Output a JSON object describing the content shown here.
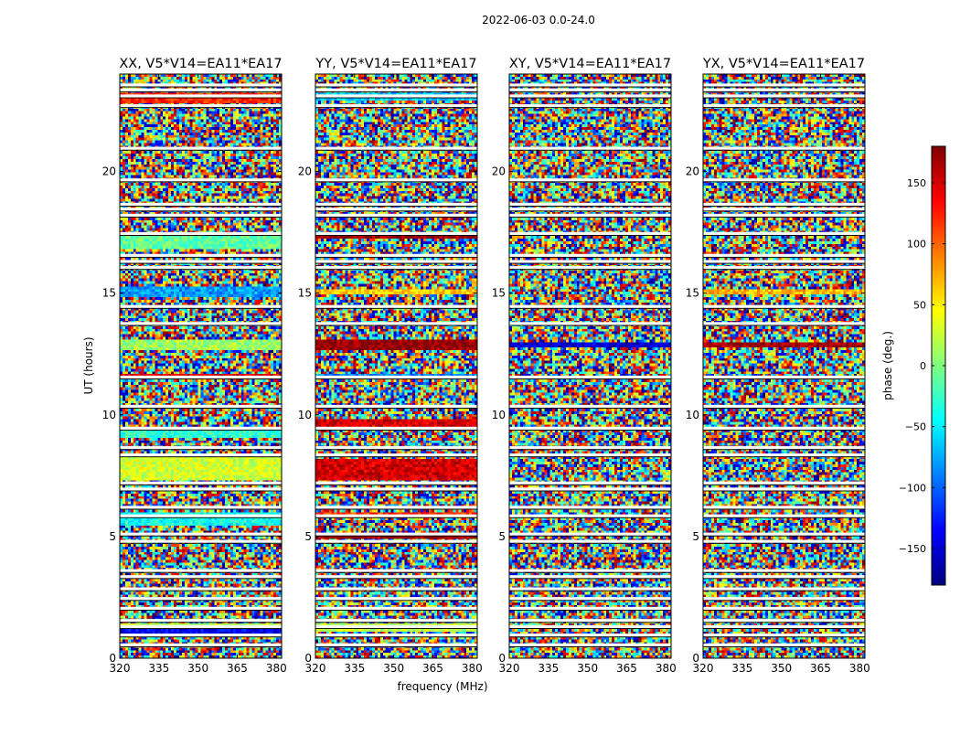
{
  "figure": {
    "suptitle": "2022-06-03 0.0-24.0",
    "xlabel": "frequency (MHz)",
    "ylabel": "UT (hours)"
  },
  "colorbar": {
    "label": "phase (deg.)",
    "range": [
      -180,
      180
    ],
    "ticks": [
      150,
      100,
      50,
      0,
      -50,
      -100,
      -150
    ],
    "tick_labels": [
      "150",
      "100",
      "50",
      "0",
      "−50",
      "−100",
      "−150"
    ],
    "colormap": "jet",
    "stops": [
      "#00007f",
      "#0000ff",
      "#007fff",
      "#00ffff",
      "#7fff7f",
      "#ffff00",
      "#ff7f00",
      "#ff0000",
      "#7f0000"
    ]
  },
  "chart_data": {
    "type": "heatmap",
    "x_range": [
      320,
      382
    ],
    "y_range": [
      0,
      24
    ],
    "xticks": [
      320,
      335,
      350,
      365,
      380
    ],
    "yticks": [
      0,
      5,
      10,
      15,
      20
    ],
    "value_range": [
      -180,
      180
    ],
    "flagged_rows_hours": [
      0.55,
      0.95,
      1.3,
      1.55,
      2.05,
      2.45,
      2.85,
      3.35,
      3.6,
      4.8,
      5.1,
      5.85,
      6.2,
      6.95,
      7.2,
      8.35,
      8.65,
      9.45,
      10.35,
      11.55,
      13.75,
      14.45,
      16.05,
      16.3,
      16.55,
      17.45,
      18.2,
      18.45,
      18.65,
      19.65,
      20.95,
      22.7,
      23.1,
      23.35,
      23.55
    ],
    "subplots": [
      {
        "title": "XX, V5*V14=EA11*EA17",
        "coherent_bands": [
          {
            "hours": [
              0.95,
              1.15
            ],
            "phase": -140
          },
          {
            "hours": [
              1.25,
              1.45
            ],
            "phase": 20
          },
          {
            "hours": [
              5.45,
              6.05
            ],
            "phase": -40
          },
          {
            "hours": [
              7.3,
              8.3
            ],
            "phase": 30
          },
          {
            "hours": [
              9.05,
              9.35
            ],
            "phase": -30
          },
          {
            "hours": [
              11.45,
              11.7
            ],
            "phase": 150
          },
          {
            "hours": [
              12.7,
              13.1
            ],
            "phase": 10
          },
          {
            "hours": [
              14.8,
              15.3
            ],
            "phase": -80
          },
          {
            "hours": [
              16.85,
              17.35
            ],
            "phase": -10
          },
          {
            "hours": [
              22.85,
              23.25
            ],
            "phase": 120
          }
        ]
      },
      {
        "title": "YY, V5*V14=EA11*EA17",
        "coherent_bands": [
          {
            "hours": [
              1.1,
              1.45
            ],
            "phase": 20
          },
          {
            "hours": [
              4.95,
              5.15
            ],
            "phase": 170
          },
          {
            "hours": [
              5.75,
              6.0
            ],
            "phase": 120
          },
          {
            "hours": [
              7.3,
              8.2
            ],
            "phase": 150
          },
          {
            "hours": [
              9.5,
              9.8
            ],
            "phase": 150
          },
          {
            "hours": [
              11.45,
              11.7
            ],
            "phase": -90
          },
          {
            "hours": [
              12.7,
              13.1
            ],
            "phase": 175
          },
          {
            "hours": [
              14.9,
              15.2
            ],
            "phase": 60
          },
          {
            "hours": [
              17.2,
              17.45
            ],
            "phase": 170
          },
          {
            "hours": [
              22.9,
              23.2
            ],
            "phase": -60
          }
        ]
      },
      {
        "title": "XY, V5*V14=EA11*EA17",
        "coherent_bands": [
          {
            "hours": [
              12.75,
              13.0
            ],
            "phase": -150
          }
        ]
      },
      {
        "title": "YX, V5*V14=EA11*EA17",
        "coherent_bands": [
          {
            "hours": [
              12.75,
              13.0
            ],
            "phase": 170
          },
          {
            "hours": [
              14.9,
              15.15
            ],
            "phase": 70
          }
        ]
      }
    ]
  }
}
